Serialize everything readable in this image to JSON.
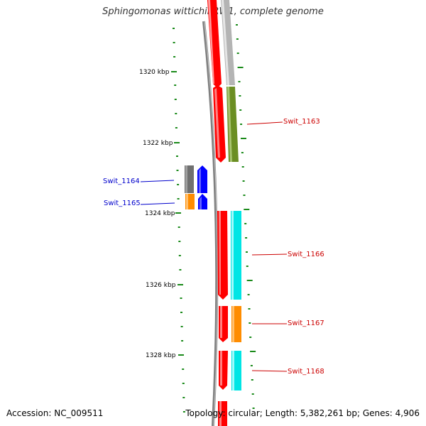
{
  "title": "Sphingomonas wittichii RW1, complete genome",
  "footer": {
    "accession": "Accession: NC_009511",
    "summary": "Topology: circular; Length: 5,382,261 bp; Genes: 4,906"
  },
  "colors": {
    "tick": "#1a8a1a",
    "backbone": "#808080",
    "forward_label": "#cc0000",
    "reverse_label": "#0000cc"
  },
  "scale": {
    "ticks": [
      "1320 kbp",
      "1322 kbp",
      "1324 kbp",
      "1326 kbp",
      "1328 kbp"
    ]
  },
  "genes": [
    {
      "label": "Swit_1163",
      "strand": "+"
    },
    {
      "label": "Swit_1164",
      "strand": "-"
    },
    {
      "label": "Swit_1165",
      "strand": "-"
    },
    {
      "label": "Swit_1166",
      "strand": "+"
    },
    {
      "label": "Swit_1167",
      "strand": "+"
    },
    {
      "label": "Swit_1168",
      "strand": "+"
    }
  ]
}
